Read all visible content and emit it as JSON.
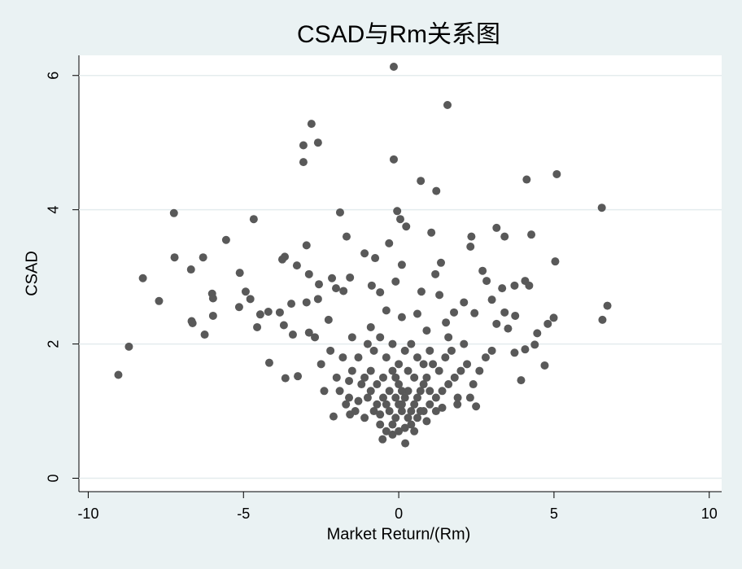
{
  "chart_data": {
    "type": "scatter",
    "title": "CSAD与Rm关系图",
    "x_label": "Market Return/(Rm)",
    "y_label": "CSAD",
    "color": "#595959",
    "xlim": [
      -10.3,
      10.4
    ],
    "ylim": [
      -0.2,
      6.3
    ],
    "xticks": [
      -10,
      -5,
      0,
      5,
      10
    ],
    "yticks": [
      0,
      2,
      4,
      6
    ],
    "grid": true,
    "x": [
      -0.16,
      1.57,
      -2.81,
      -2.6,
      -3.07,
      -3.07,
      -0.16,
      0.71,
      1.21,
      4.12,
      5.09,
      6.54,
      -7.24,
      -4.67,
      -1.89,
      -0.05,
      0.05,
      0.24,
      1.05,
      3.15,
      2.34,
      3.41,
      4.27,
      -5.56,
      -1.68,
      -2.97,
      -0.31,
      2.31,
      -7.22,
      -6.3,
      -3.67,
      -3.75,
      -1.1,
      -0.76,
      1.36,
      0.1,
      5.04,
      -6.69,
      -5.12,
      -3.28,
      -2.89,
      -2.15,
      1.18,
      -8.24,
      2.7,
      2.83,
      -0.1,
      -2.57,
      -1.57,
      -0.87,
      -2.02,
      -4.93,
      -6.01,
      -5.98,
      -4.78,
      -7.72,
      -1.78,
      -0.6,
      0.73,
      1.31,
      3.73,
      3.33,
      4.07,
      4.2,
      -3.46,
      -2.97,
      -2.6,
      -5.14,
      -4.2,
      -4.46,
      -3.83,
      -5.98,
      -6.67,
      -6.64,
      -4.56,
      -3.7,
      -2.26,
      -6.25,
      6.72,
      6.56,
      4.99,
      4.8,
      3.0,
      2.1,
      2.44,
      3.41,
      3.75,
      3.15,
      3.52,
      4.46,
      1.78,
      1.52,
      -8.69,
      -9.03,
      -4.17,
      -3.65,
      -3.25,
      4.7,
      3.94,
      -3.41,
      -2.89,
      4.07,
      4.38,
      3.73,
      2.49,
      1.89,
      0.21,
      -0.52,
      -1.57,
      -2.1,
      -1.5,
      -1.2,
      -1.0,
      -0.8,
      -0.6,
      -0.4,
      -0.2,
      0,
      0.2,
      0.4,
      0.6,
      0.8,
      1.0,
      1.2,
      1.4,
      1.6,
      1.8,
      2.0,
      2.2,
      -1.8,
      -1.6,
      -1.4,
      -1.1,
      -0.9,
      -0.7,
      -0.5,
      -0.3,
      -0.1,
      0.1,
      0.3,
      0.5,
      0.7,
      0.9,
      1.1,
      1.3,
      1.5,
      1.7,
      -1.3,
      -1.0,
      -0.8,
      -0.6,
      -0.4,
      -0.2,
      0,
      0.2,
      0.4,
      0.6,
      0.8,
      1.0,
      1.2,
      -0.5,
      -0.3,
      -0.1,
      0.1,
      0.3,
      0.5,
      -0.7,
      -0.9,
      -1.1,
      0.0,
      0.2,
      0.4,
      0.6,
      0.8,
      1.0,
      -0.2,
      -2.2,
      -2.0,
      -1.9,
      -1.7,
      2.4,
      2.6,
      2.3,
      2.8,
      -2.5,
      -2.4,
      0.0,
      0.1,
      -0.1,
      0.3,
      -0.4,
      0.7,
      -0.6,
      0.9,
      -0.2,
      0.5,
      1.4,
      -1.3,
      1.9,
      -1.6,
      2.1,
      -2.7,
      3.0,
      1.6,
      -1.5,
      0.9,
      -0.9,
      0.1,
      -0.4,
      0.6
    ],
    "values": [
      6.13,
      5.56,
      5.28,
      5.0,
      4.96,
      4.71,
      4.75,
      4.43,
      4.28,
      4.45,
      4.53,
      4.03,
      3.95,
      3.86,
      3.96,
      3.98,
      3.86,
      3.75,
      3.66,
      3.73,
      3.6,
      3.6,
      3.63,
      3.55,
      3.6,
      3.47,
      3.5,
      3.45,
      3.29,
      3.29,
      3.3,
      3.26,
      3.35,
      3.28,
      3.21,
      3.18,
      3.23,
      3.11,
      3.06,
      3.17,
      3.04,
      2.98,
      3.04,
      2.98,
      3.09,
      2.94,
      2.93,
      2.89,
      2.99,
      2.87,
      2.83,
      2.78,
      2.75,
      2.68,
      2.67,
      2.64,
      2.79,
      2.77,
      2.78,
      2.73,
      2.87,
      2.83,
      2.94,
      2.87,
      2.6,
      2.62,
      2.67,
      2.55,
      2.48,
      2.44,
      2.47,
      2.42,
      2.34,
      2.31,
      2.25,
      2.28,
      2.36,
      2.14,
      2.57,
      2.36,
      2.39,
      2.3,
      2.66,
      2.62,
      2.46,
      2.47,
      2.42,
      2.3,
      2.23,
      2.16,
      2.47,
      2.32,
      1.96,
      1.54,
      1.72,
      1.49,
      1.52,
      1.68,
      1.46,
      2.14,
      2.17,
      1.92,
      1.99,
      1.87,
      1.07,
      1.1,
      0.52,
      0.58,
      0.95,
      0.92,
      1.6,
      1.4,
      1.2,
      1.0,
      0.8,
      0.7,
      0.65,
      0.7,
      0.75,
      0.8,
      0.9,
      1.0,
      1.1,
      1.2,
      1.3,
      1.4,
      1.5,
      1.6,
      1.7,
      1.8,
      1.2,
      1.0,
      0.9,
      1.6,
      1.4,
      1.2,
      1.0,
      0.9,
      1.1,
      1.3,
      1.5,
      1.3,
      1.5,
      1.7,
      1.6,
      1.8,
      1.9,
      1.8,
      2.0,
      1.9,
      2.1,
      1.8,
      1.6,
      1.4,
      1.2,
      1.0,
      1.2,
      1.4,
      1.3,
      1.0,
      1.5,
      1.3,
      1.2,
      1.0,
      0.9,
      1.1,
      1.1,
      1.3,
      1.5,
      1.7,
      1.9,
      2.0,
      1.8,
      1.7,
      1.9,
      2.0,
      1.9,
      1.5,
      1.3,
      1.1,
      1.4,
      1.6,
      1.2,
      1.8,
      1.7,
      1.3,
      1.1,
      1.3,
      1.5,
      1.6,
      1.1,
      1.0,
      0.95,
      0.85,
      0.8,
      0.7,
      1.05,
      1.15,
      1.2,
      1.45,
      2.0,
      2.1,
      1.9,
      2.1,
      2.1,
      2.2,
      2.25,
      2.4,
      2.5,
      2.45
    ]
  }
}
